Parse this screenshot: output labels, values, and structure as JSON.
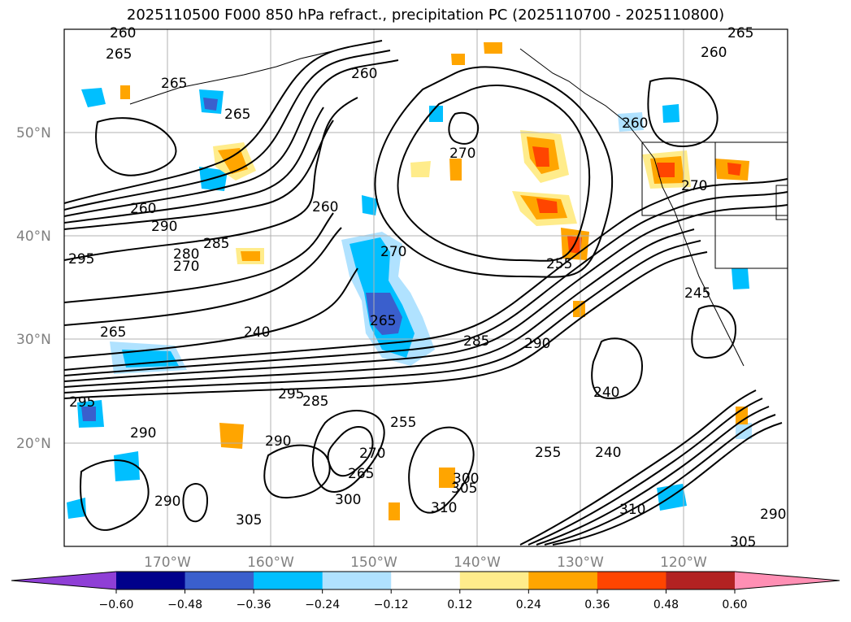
{
  "title": "2025110500 F000 850 hPa refract., precipitation PC (2025110700 - 2025110800)",
  "lat_labels": [
    "50°N",
    "40°N",
    "30°N",
    "20°N"
  ],
  "lon_labels": [
    "170°W",
    "160°W",
    "150°W",
    "140°W",
    "130°W",
    "120°W"
  ],
  "colorbar": {
    "colors": [
      "#8f3fd6",
      "#00008b",
      "#3a5fcd",
      "#00bfff",
      "#b0e2ff",
      "#ffffff",
      "#ffec8b",
      "#ffa500",
      "#ff4500",
      "#b22222",
      "#ff8fb4"
    ],
    "ticks": [
      "−0.60",
      "−0.48",
      "−0.36",
      "−0.24",
      "−0.12",
      "0.12",
      "0.24",
      "0.36",
      "0.48",
      "0.60"
    ]
  },
  "contour_labels": [
    "260",
    "265",
    "265",
    "265",
    "265",
    "260",
    "270",
    "260",
    "270",
    "285",
    "280",
    "270",
    "290",
    "295",
    "295",
    "240",
    "265",
    "290",
    "285",
    "265",
    "295",
    "285",
    "290",
    "260",
    "255",
    "270",
    "240",
    "255",
    "240",
    "245",
    "260",
    "270",
    "255",
    "265",
    "260",
    "300",
    "305",
    "310",
    "290",
    "290",
    "305",
    "310",
    "305",
    "290",
    "300"
  ]
}
